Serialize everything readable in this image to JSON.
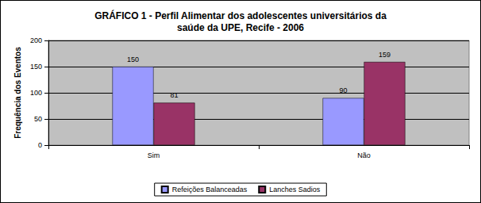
{
  "chart_data": {
    "type": "bar",
    "title": "GRÁFICO 1 - Perfil Alimentar dos adolescentes universitários da\nsaúde da UPE, Recife - 2006",
    "y_label": "Frequência dos Eventos",
    "categories": [
      "Sim",
      "Não"
    ],
    "series": [
      {
        "name": "Refeições Balanceadas",
        "color": "#9999ff",
        "values": [
          150,
          90
        ]
      },
      {
        "name": "Lanches Sadios",
        "color": "#993366",
        "values": [
          81,
          159
        ]
      }
    ],
    "ylim": [
      0,
      200
    ],
    "yticks": [
      0,
      50,
      100,
      150,
      200
    ],
    "grid": true,
    "legend": "bottom",
    "data_labels": true
  }
}
